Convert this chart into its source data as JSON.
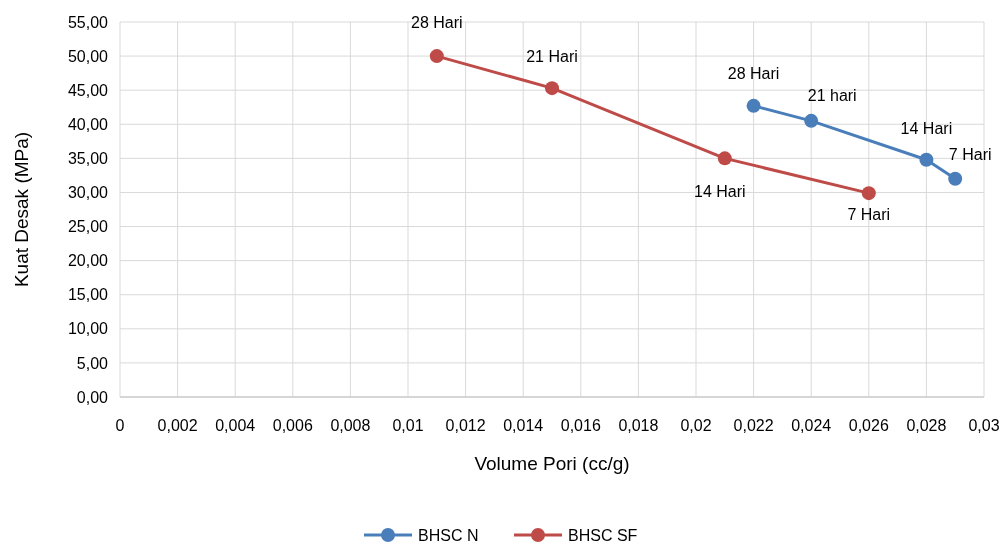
{
  "chart_data": {
    "type": "line",
    "xlabel": "Volume Pori (cc/g)",
    "ylabel": "Kuat Desak (MPa)",
    "xlim": [
      0,
      0.03
    ],
    "ylim": [
      0,
      55
    ],
    "xticks": [
      0,
      {
        "value": 0.002,
        "label": "0,002"
      },
      {
        "value": 0.004,
        "label": "0,004"
      },
      {
        "value": 0.006,
        "label": "0,006"
      },
      {
        "value": 0.008,
        "label": "0,008"
      },
      {
        "value": 0.01,
        "label": "0,01"
      },
      {
        "value": 0.012,
        "label": "0,012"
      },
      {
        "value": 0.014,
        "label": "0,014"
      },
      {
        "value": 0.016,
        "label": "0,016"
      },
      {
        "value": 0.018,
        "label": "0,018"
      },
      {
        "value": 0.02,
        "label": "0,02"
      },
      {
        "value": 0.022,
        "label": "0,022"
      },
      {
        "value": 0.024,
        "label": "0,024"
      },
      {
        "value": 0.026,
        "label": "0,026"
      },
      {
        "value": 0.028,
        "label": "0,028"
      },
      {
        "value": 0.03,
        "label": "0,03"
      }
    ],
    "yticks": [
      {
        "value": 0,
        "label": "0,00"
      },
      {
        "value": 5,
        "label": "5,00"
      },
      {
        "value": 10,
        "label": "10,00"
      },
      {
        "value": 15,
        "label": "15,00"
      },
      {
        "value": 20,
        "label": "20,00"
      },
      {
        "value": 25,
        "label": "25,00"
      },
      {
        "value": 30,
        "label": "30,00"
      },
      {
        "value": 35,
        "label": "35,00"
      },
      {
        "value": 40,
        "label": "40,00"
      },
      {
        "value": 45,
        "label": "45,00"
      },
      {
        "value": 50,
        "label": "50,00"
      },
      {
        "value": 55,
        "label": "55,00"
      }
    ],
    "grid": true,
    "legend": "bottom",
    "marker": "circle",
    "line_style": "solid",
    "series": [
      {
        "name": "BHSC N",
        "color": "#4a7ebb",
        "x": [
          0.022,
          0.024,
          0.028,
          0.029
        ],
        "values": [
          42.7,
          40.5,
          34.8,
          32.0
        ]
      },
      {
        "name": "BHSC SF",
        "color": "#be4b48",
        "x": [
          0.011,
          0.015,
          0.021,
          0.026
        ],
        "values": [
          50.0,
          45.3,
          35.0,
          29.9
        ]
      }
    ],
    "annotations": [
      {
        "text": "28 Hari",
        "x": 0.022,
        "y": 42.7
      },
      {
        "text": "21 hari",
        "x": 0.024,
        "y": 40.5
      },
      {
        "text": "14 Hari",
        "x": 0.028,
        "y": 34.8
      },
      {
        "text": "7 Hari",
        "x": 0.029,
        "y": 32.0
      },
      {
        "text": "28 Hari",
        "x": 0.011,
        "y": 50.0
      },
      {
        "text": "21 Hari",
        "x": 0.015,
        "y": 45.3
      },
      {
        "text": "14 Hari",
        "x": 0.021,
        "y": 35.0
      },
      {
        "text": "7 Hari",
        "x": 0.026,
        "y": 29.9
      }
    ]
  }
}
